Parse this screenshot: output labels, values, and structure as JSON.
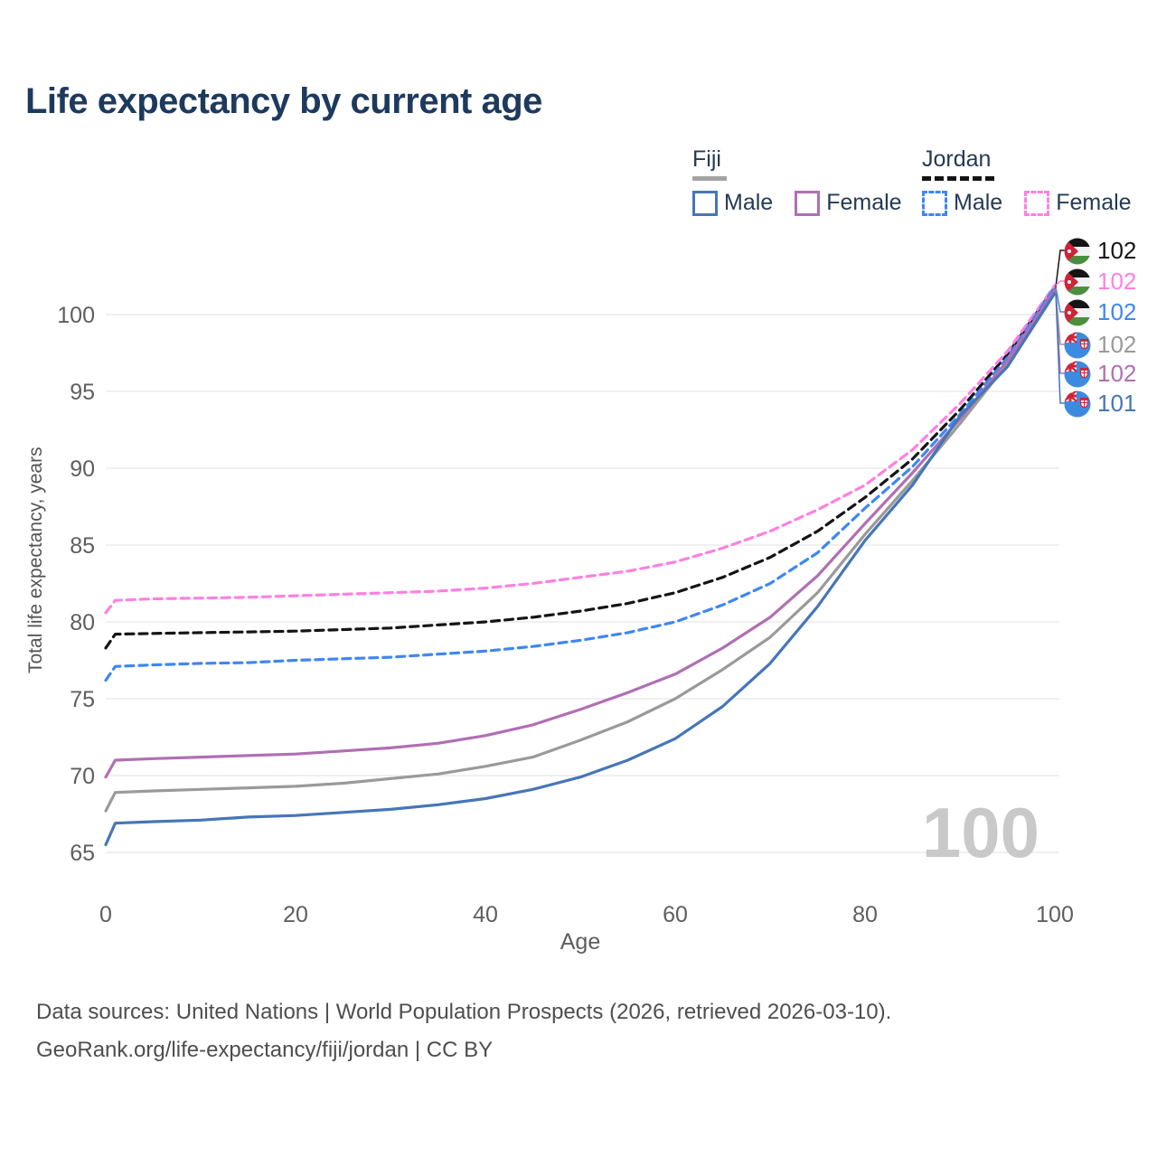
{
  "title": "Life expectancy by current age",
  "legend": {
    "groups": [
      {
        "label": "Fiji",
        "line_style": "solid",
        "underline_color": "#a3a3a3",
        "items": [
          {
            "label": "Male",
            "color": "#4676b7",
            "box_style": "solid"
          },
          {
            "label": "Female",
            "color": "#b06fb3",
            "box_style": "solid"
          }
        ]
      },
      {
        "label": "Jordan",
        "line_style": "dashed",
        "underline_color": "#141414",
        "items": [
          {
            "label": "Male",
            "color": "#3e87f2",
            "box_style": "dashed"
          },
          {
            "label": "Female",
            "color": "#ff80e1",
            "box_style": "dashed"
          }
        ]
      }
    ]
  },
  "watermark": "100",
  "footer": {
    "line1": "Data sources: United Nations | World Population Prospects (2026, retrieved 2026-03-10).",
    "line2": "GeoRank.org/life-expectancy/fiji/jordan | CC BY"
  },
  "chart_data": {
    "type": "line",
    "title": "Life expectancy by current age",
    "xlabel": "Age",
    "ylabel": "Total life expectancy, years",
    "xlim": [
      0,
      100
    ],
    "ylim": [
      65,
      102
    ],
    "x_ticks": [
      0,
      20,
      40,
      60,
      80,
      100
    ],
    "y_ticks": [
      65,
      70,
      75,
      80,
      85,
      90,
      95,
      100
    ],
    "grid": "horizontal",
    "grid_color": "#ececec",
    "tick_color": "#5e5e5e",
    "legend_position": "top-right",
    "x": [
      0,
      1,
      5,
      10,
      15,
      20,
      25,
      30,
      35,
      40,
      45,
      50,
      55,
      60,
      65,
      70,
      75,
      80,
      85,
      90,
      95,
      100
    ],
    "series": [
      {
        "id": "jordan-total",
        "name": "Jordan",
        "sex": "Both",
        "color": "#141414",
        "dash": "dashed",
        "flag": "jordan",
        "end_label": "102",
        "label_row": 0,
        "values": [
          78.3,
          79.2,
          79.25,
          79.3,
          79.35,
          79.4,
          79.5,
          79.6,
          79.8,
          80.0,
          80.3,
          80.7,
          81.2,
          81.9,
          82.9,
          84.2,
          85.9,
          88.1,
          90.6,
          93.8,
          97.4,
          101.8
        ]
      },
      {
        "id": "jordan-female",
        "name": "Jordan Female",
        "sex": "Female",
        "color": "#ff80e1",
        "dash": "dashed",
        "flag": "jordan",
        "end_label": "102",
        "label_row": 1,
        "values": [
          80.6,
          81.4,
          81.5,
          81.55,
          81.6,
          81.7,
          81.8,
          81.9,
          82.0,
          82.2,
          82.5,
          82.9,
          83.3,
          83.9,
          84.8,
          85.9,
          87.3,
          88.9,
          91.2,
          94.2,
          97.6,
          101.9
        ]
      },
      {
        "id": "jordan-male",
        "name": "Jordan Male",
        "sex": "Male",
        "color": "#3e87f2",
        "dash": "dashed",
        "flag": "jordan",
        "end_label": "102",
        "label_row": 2,
        "values": [
          76.2,
          77.1,
          77.2,
          77.3,
          77.35,
          77.5,
          77.6,
          77.7,
          77.9,
          78.1,
          78.4,
          78.8,
          79.3,
          80.0,
          81.1,
          82.5,
          84.5,
          87.4,
          90.1,
          93.5,
          97.2,
          101.8
        ]
      },
      {
        "id": "fiji-total",
        "name": "Fiji",
        "sex": "Both",
        "color": "#9a9a9a",
        "dash": "solid",
        "flag": "fiji",
        "end_label": "102",
        "label_row": 3,
        "values": [
          67.7,
          68.9,
          69.0,
          69.1,
          69.2,
          69.3,
          69.5,
          69.8,
          70.1,
          70.6,
          71.2,
          72.3,
          73.5,
          75.0,
          76.9,
          79.0,
          81.9,
          85.7,
          89.2,
          92.9,
          96.8,
          101.5
        ]
      },
      {
        "id": "fiji-female",
        "name": "Fiji Female",
        "sex": "Female",
        "color": "#b06fb3",
        "dash": "solid",
        "flag": "fiji",
        "end_label": "102",
        "label_row": 4,
        "values": [
          69.9,
          71.0,
          71.1,
          71.2,
          71.3,
          71.4,
          71.6,
          71.8,
          72.1,
          72.6,
          73.3,
          74.3,
          75.4,
          76.6,
          78.3,
          80.3,
          83.0,
          86.4,
          89.7,
          93.2,
          97.0,
          101.6
        ]
      },
      {
        "id": "fiji-male",
        "name": "Fiji Male",
        "sex": "Male",
        "color": "#4676b7",
        "dash": "solid",
        "flag": "fiji",
        "end_label": "101",
        "label_row": 5,
        "values": [
          65.5,
          66.9,
          67.0,
          67.1,
          67.3,
          67.4,
          67.6,
          67.8,
          68.1,
          68.5,
          69.1,
          69.9,
          71.0,
          72.4,
          74.5,
          77.3,
          81.0,
          85.3,
          88.9,
          93.4,
          96.6,
          101.4
        ]
      }
    ]
  }
}
